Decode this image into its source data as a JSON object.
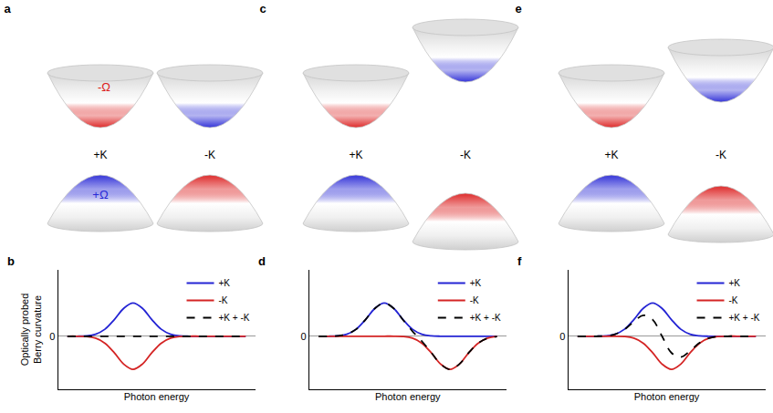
{
  "diagrams": [
    {
      "panel": "a",
      "valleys": [
        "+K",
        "-K"
      ],
      "conduction_label": "-Ω",
      "valence_label": "+Ω"
    },
    {
      "panel": "c",
      "valleys": [
        "+K",
        "-K"
      ]
    },
    {
      "panel": "e",
      "valleys": [
        "+K",
        "-K"
      ]
    }
  ],
  "chart_data": [
    {
      "type": "line",
      "panel": "b",
      "x_label": "Photon energy",
      "y_label": "Optically probed Berry curvature",
      "x": [
        0.5,
        1,
        1.5,
        2,
        2.5,
        3,
        3.5,
        4,
        4.5,
        5,
        5.5,
        6,
        6.5,
        7,
        7.5,
        8,
        8.5,
        9,
        9.5,
        10
      ],
      "xlim": [
        0,
        10.5
      ],
      "ylim": [
        -1.6,
        2.0
      ],
      "yticks": [
        0
      ],
      "tick_labels": "y",
      "grid": false,
      "legend": "upper right",
      "series": [
        {
          "name": "+K",
          "color": "#2424d4",
          "line_style": "solid",
          "values": [
            0,
            0,
            0.01,
            0.06,
            0.21,
            0.5,
            0.84,
            1,
            0.84,
            0.5,
            0.21,
            0.06,
            0.01,
            0,
            0,
            0,
            0,
            0,
            0,
            0
          ]
        },
        {
          "name": "-K",
          "color": "#d42424",
          "line_style": "solid",
          "values": [
            0,
            0,
            -0.01,
            -0.06,
            -0.21,
            -0.5,
            -0.84,
            -1,
            -0.84,
            -0.5,
            -0.21,
            -0.06,
            -0.01,
            0,
            0,
            0,
            0,
            0,
            0,
            0
          ]
        },
        {
          "name": "+K + -K",
          "color": "#000000",
          "line_style": "dash",
          "values": [
            0,
            0,
            0,
            0,
            0,
            0,
            0,
            0,
            0,
            0,
            0,
            0,
            0,
            0,
            0,
            0,
            0,
            0,
            0,
            0
          ]
        }
      ]
    },
    {
      "type": "line",
      "panel": "d",
      "x_label": "Photon energy",
      "x": [
        0.5,
        1,
        1.5,
        2,
        2.5,
        3,
        3.5,
        4,
        4.5,
        5,
        5.5,
        6,
        6.5,
        7,
        7.5,
        8,
        8.5,
        9,
        9.5,
        10
      ],
      "xlim": [
        0,
        10.5
      ],
      "ylim": [
        -1.6,
        2.0
      ],
      "yticks": [
        0
      ],
      "tick_labels": "y",
      "grid": false,
      "legend": "upper right",
      "series": [
        {
          "name": "+K",
          "color": "#2424d4",
          "line_style": "solid",
          "values": [
            0,
            0,
            0.01,
            0.06,
            0.21,
            0.5,
            0.84,
            1,
            0.84,
            0.5,
            0.21,
            0.06,
            0.01,
            0,
            0,
            0,
            0,
            0,
            0,
            0
          ]
        },
        {
          "name": "-K",
          "color": "#d42424",
          "line_style": "solid",
          "values": [
            0,
            0,
            0,
            0,
            0,
            0,
            0,
            0,
            0,
            -0.01,
            -0.06,
            -0.21,
            -0.5,
            -0.84,
            -1,
            -0.84,
            -0.5,
            -0.21,
            -0.06,
            -0.01
          ]
        },
        {
          "name": "+K + -K",
          "color": "#000000",
          "line_style": "dash",
          "values": [
            0,
            0,
            0.01,
            0.06,
            0.21,
            0.5,
            0.84,
            1,
            0.84,
            0.49,
            0.15,
            -0.15,
            -0.49,
            -0.84,
            -1,
            -0.84,
            -0.5,
            -0.21,
            -0.06,
            -0.01
          ]
        }
      ]
    },
    {
      "type": "line",
      "panel": "f",
      "x_label": "Photon energy",
      "x": [
        0.5,
        1,
        1.5,
        2,
        2.5,
        3,
        3.5,
        4,
        4.5,
        5,
        5.5,
        6,
        6.5,
        7,
        7.5,
        8,
        8.5,
        9,
        9.5,
        10
      ],
      "xlim": [
        0,
        10.5
      ],
      "ylim": [
        -1.6,
        2.0
      ],
      "yticks": [
        0
      ],
      "tick_labels": "y",
      "grid": false,
      "legend": "upper right",
      "series": [
        {
          "name": "+K",
          "color": "#2424d4",
          "line_style": "solid",
          "values": [
            0,
            0,
            0,
            0.01,
            0.06,
            0.21,
            0.5,
            0.84,
            1,
            0.84,
            0.5,
            0.21,
            0.06,
            0.01,
            0,
            0,
            0,
            0,
            0,
            0
          ]
        },
        {
          "name": "-K",
          "color": "#d42424",
          "line_style": "solid",
          "values": [
            0,
            0,
            0,
            0,
            0,
            -0.01,
            -0.06,
            -0.21,
            -0.5,
            -0.84,
            -1,
            -0.84,
            -0.5,
            -0.21,
            -0.06,
            -0.01,
            0,
            0,
            0,
            0
          ]
        },
        {
          "name": "+K + -K",
          "color": "#000000",
          "line_style": "dash",
          "values": [
            0,
            0,
            0,
            0.01,
            0.06,
            0.2,
            0.44,
            0.63,
            0.5,
            0,
            -0.5,
            -0.63,
            -0.44,
            -0.2,
            -0.06,
            -0.01,
            0,
            0,
            0,
            0
          ]
        }
      ]
    }
  ]
}
